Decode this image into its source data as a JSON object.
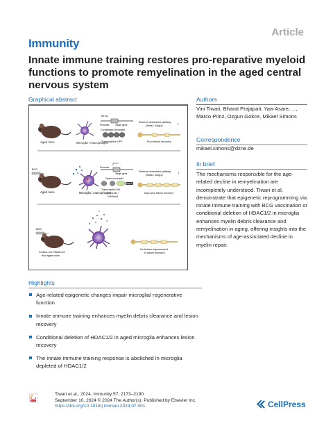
{
  "article_type": "Article",
  "journal": "Immunity",
  "title": "Innate immune training restores pro-reparative myeloid functions to promote remyelination in the aged central nervous system",
  "graphical_abstract": {
    "heading": "Graphical abstract",
    "panel1": {
      "dna_marks": "Ac Ac",
      "promoter": "Promoter",
      "target_gene": "Target gene",
      "chromatin": "Condensed chromatin",
      "transcription": "Transcription OFF",
      "pathway": "Reverse cholesterol pathway",
      "pathway_genes": "(Abca1, Abcg1)",
      "mice": "Aged mice",
      "cells": "Microglia / macrophages",
      "outcome": "Poor lesion recovery",
      "arrow": "↓"
    },
    "panel2": {
      "promoter": "Promoter",
      "target_gene": "Target gene",
      "chromatin": "Open chromatin",
      "transcription": "Transcription ON",
      "mark1": "H3K27ac ↑",
      "mark2": "H3K4me3",
      "tag": "RNA pol",
      "pathway": "Reverse cholesterol pathway",
      "pathway_genes": "(Abca1, Abcg1)",
      "mice": "Aged mice",
      "cells": "Microglia / macrophages",
      "outcome": "Improved lesion recovery",
      "bcg": "BCG",
      "arrow": "↑"
    },
    "panel3": {
      "bcg": "BCG",
      "mice_line1": "Cx3cr1-cre HDAC1/2",
      "mice_line2": "flox aged mice",
      "outcome_line1": "No further improvement",
      "outcome_line2": "in lesion recovery"
    }
  },
  "authors": {
    "heading": "Authors",
    "names": "Vini Tiwari, Bharat Prajapati, Yaw Asare, ..., Marco Prinz, Ozgun Gokce, Mikael Simons"
  },
  "correspondence": {
    "heading": "Correspondence",
    "email": "mikael.simons@dzne.de"
  },
  "in_brief": {
    "heading": "In brief",
    "text": "The mechanisms responsible for the age-related decline in remyelination are incompletely understood. Tiwari et al. demonstrate that epigenetic reprogramming via innate immune training with BCG vaccination or conditional deletion of HDAC1/2 in microglia enhances myelin debris clearance and remyelination in aging, offering insights into the mechanisms of age-associated decline in myelin repair."
  },
  "highlights": {
    "heading": "Highlights",
    "items": [
      "Age-related epigenetic changes impair microglial regenerative function",
      "Innate immune training enhances myelin debris clearance and lesion recovery",
      "Conditional deletion of HDAC1/2 in aged microglia enhances lesion recovery",
      "The innate immune training response is abolished in microglia depleted of HDAC1/2"
    ]
  },
  "citation": {
    "line1": "Tiwari et al., 2024, Immunity 57, 2173–2190",
    "line2": "September 10, 2024 © 2024 The Author(s). Published by Elsevier Inc.",
    "doi": "https://doi.org/10.1016/j.immuni.2024.07.001"
  },
  "publisher": "CellPress",
  "colors": {
    "accent": "#1d6fb8",
    "gray_label": "#a7a9ac",
    "text": "#231f20"
  }
}
